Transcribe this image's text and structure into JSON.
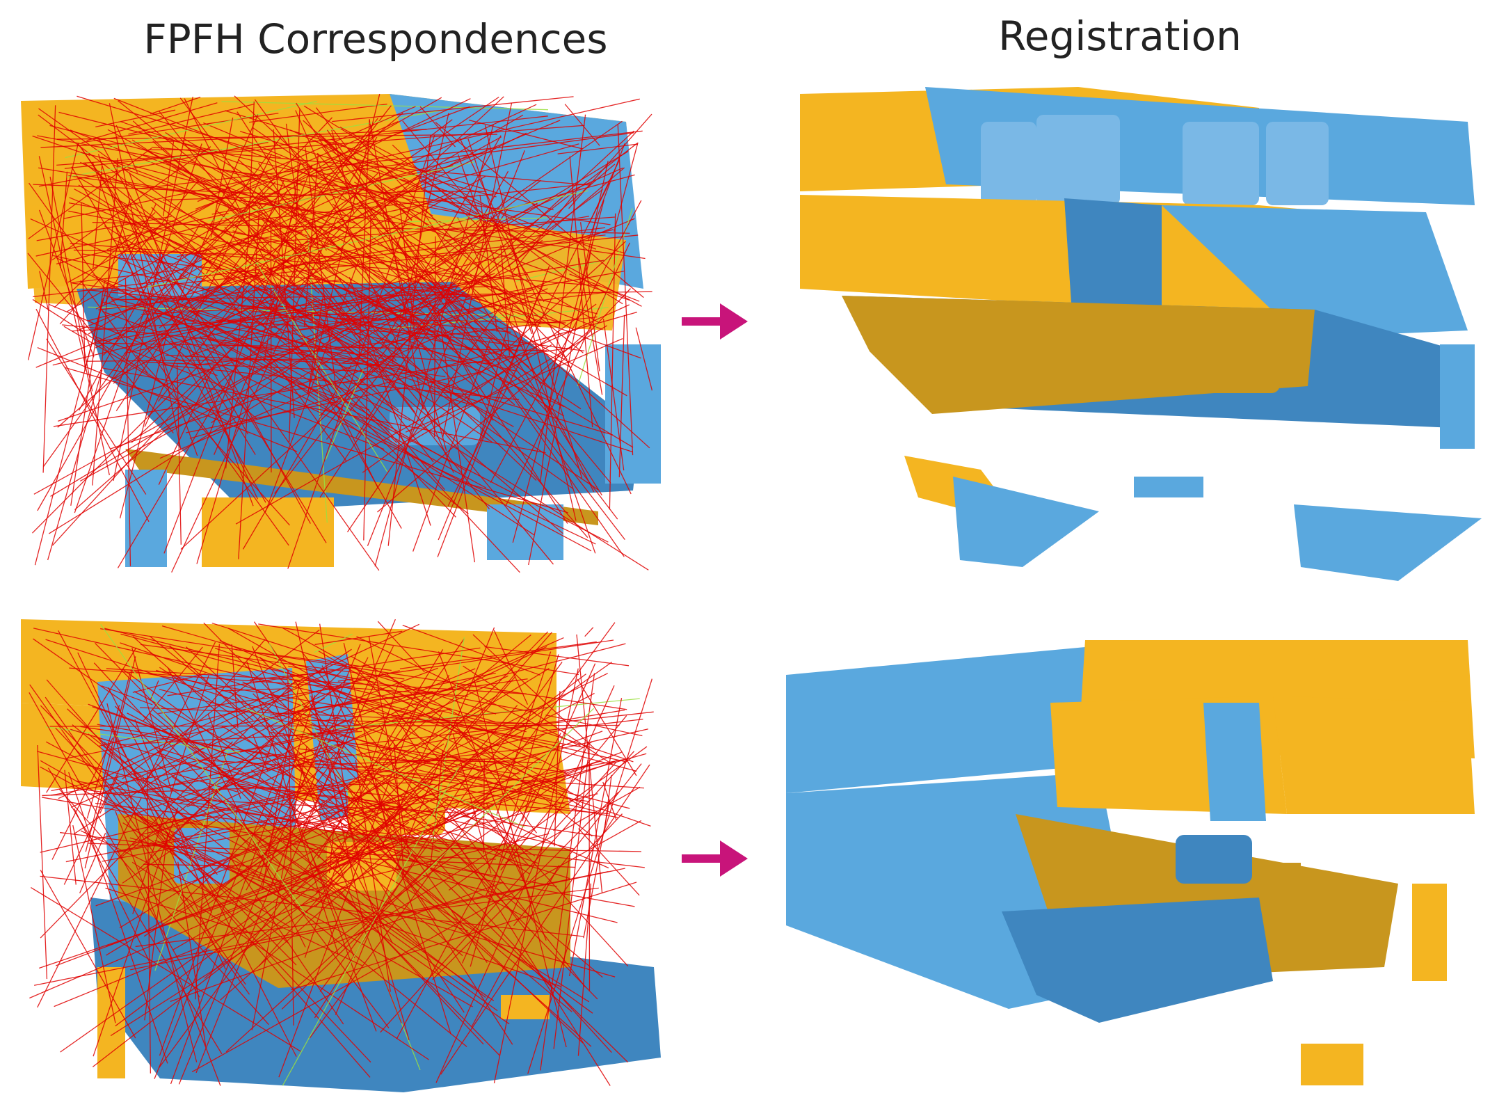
{
  "titles": {
    "left": "FPFH Correspondences",
    "right": "Registration"
  },
  "colors": {
    "source_cloud": "#f4b521",
    "source_cloud_dark": "#c8961e",
    "target_cloud": "#5aa8de",
    "target_cloud_dark": "#3f86bf",
    "outlier_correspondence": "#e00000",
    "inlier_correspondence": "#9be040",
    "arrow": "#c8147a"
  },
  "icons": {
    "arrow": "arrow-right-icon"
  }
}
